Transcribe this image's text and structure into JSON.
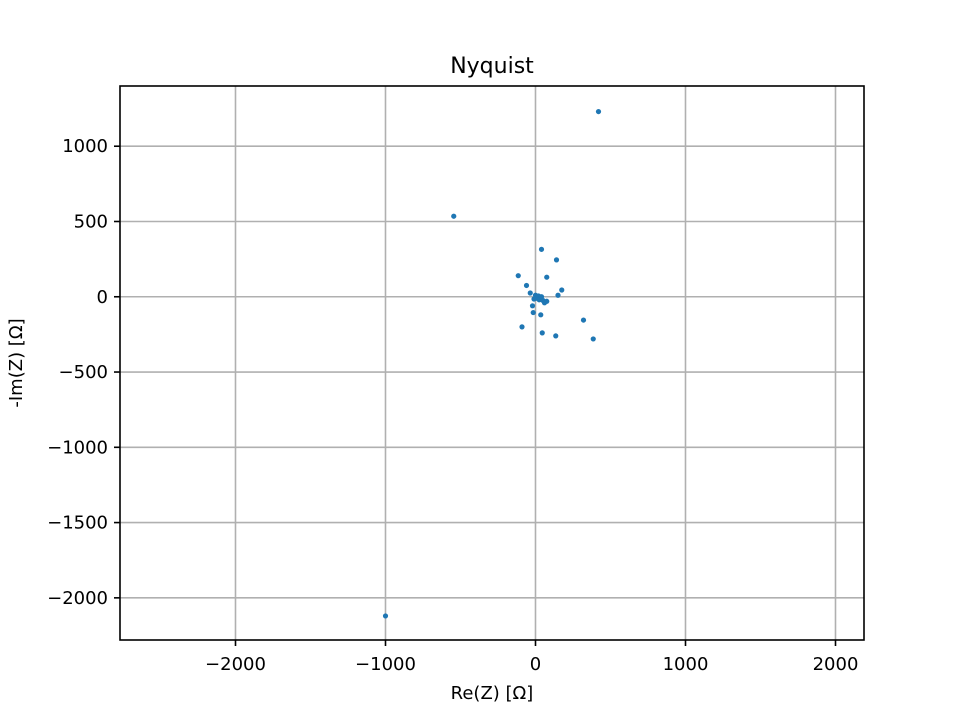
{
  "chart_data": {
    "type": "scatter",
    "title": "Nyquist",
    "xlabel": "Re(Z) [Ω]",
    "ylabel": "-Im(Z) [Ω]",
    "xlim": [
      -2770,
      2190
    ],
    "ylim": [
      -2280,
      1400
    ],
    "xticks": [
      -2000,
      -1000,
      0,
      1000,
      2000
    ],
    "xtick_labels": [
      "−2000",
      "−1000",
      "0",
      "1000",
      "2000"
    ],
    "yticks": [
      -2000,
      -1500,
      -1000,
      -500,
      0,
      500,
      1000
    ],
    "ytick_labels": [
      "−2000",
      "−1500",
      "−1000",
      "−500",
      "0",
      "500",
      "1000"
    ],
    "grid": true,
    "marker_color": "#1f77b4",
    "points": [
      {
        "x": 420,
        "y": 1230
      },
      {
        "x": -545,
        "y": 535
      },
      {
        "x": -1000,
        "y": -2120
      },
      {
        "x": 40,
        "y": 315
      },
      {
        "x": 140,
        "y": 245
      },
      {
        "x": -115,
        "y": 140
      },
      {
        "x": 75,
        "y": 130
      },
      {
        "x": -60,
        "y": 75
      },
      {
        "x": 175,
        "y": 45
      },
      {
        "x": -35,
        "y": 25
      },
      {
        "x": 150,
        "y": 10
      },
      {
        "x": 0,
        "y": 10
      },
      {
        "x": 20,
        "y": 5
      },
      {
        "x": 40,
        "y": 0
      },
      {
        "x": 10,
        "y": -10
      },
      {
        "x": -10,
        "y": -15
      },
      {
        "x": 25,
        "y": -20
      },
      {
        "x": 50,
        "y": -25
      },
      {
        "x": 75,
        "y": -30
      },
      {
        "x": 60,
        "y": -40
      },
      {
        "x": -20,
        "y": -60
      },
      {
        "x": -15,
        "y": -105
      },
      {
        "x": 35,
        "y": -120
      },
      {
        "x": 320,
        "y": -155
      },
      {
        "x": -90,
        "y": -200
      },
      {
        "x": 45,
        "y": -240
      },
      {
        "x": 135,
        "y": -260
      },
      {
        "x": 385,
        "y": -280
      }
    ]
  }
}
